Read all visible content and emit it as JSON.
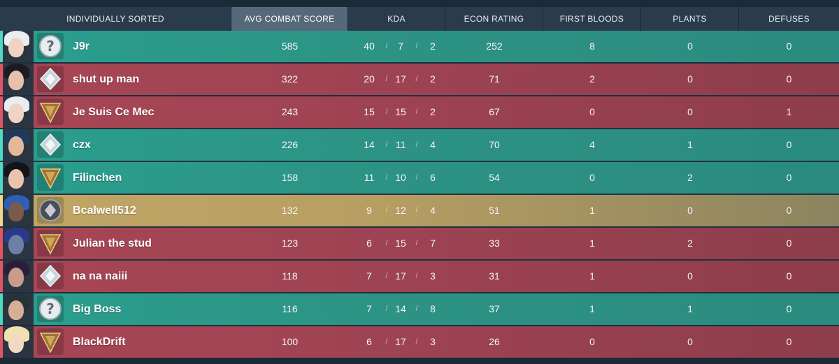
{
  "header": {
    "individually_sorted": "INDIVIDUALLY SORTED",
    "avg_combat_score": "AVG COMBAT SCORE",
    "kda": "KDA",
    "econ_rating": "ECON RATING",
    "first_bloods": "FIRST BLOODS",
    "plants": "PLANTS",
    "defuses": "DEFUSES"
  },
  "kda_separator": "/",
  "colors": {
    "ally_row": "#2a9f8f",
    "enemy_row": "#a84655",
    "self_row": "#c1a665",
    "active_header": "#55697a"
  },
  "players": [
    {
      "name": "J9r",
      "team": "ally",
      "rank_icon": "unranked-icon",
      "agent_icon": "agent-jett-icon",
      "acs": "585",
      "k": "40",
      "d": "7",
      "a": "2",
      "econ": "252",
      "fb": "8",
      "plants": "0",
      "defuses": "0"
    },
    {
      "name": "shut up man",
      "team": "enemy",
      "rank_icon": "silver-rank-icon",
      "agent_icon": "agent-reyna-icon",
      "acs": "322",
      "k": "20",
      "d": "17",
      "a": "2",
      "econ": "71",
      "fb": "2",
      "plants": "0",
      "defuses": "0"
    },
    {
      "name": "Je Suis Ce Mec",
      "team": "enemy",
      "rank_icon": "bronze-rank-icon",
      "agent_icon": "agent-jett-icon",
      "acs": "243",
      "k": "15",
      "d": "15",
      "a": "2",
      "econ": "67",
      "fb": "0",
      "plants": "0",
      "defuses": "1"
    },
    {
      "name": "czx",
      "team": "ally",
      "rank_icon": "silver-rank-icon",
      "agent_icon": "agent-neon-icon",
      "acs": "226",
      "k": "14",
      "d": "11",
      "a": "4",
      "econ": "70",
      "fb": "4",
      "plants": "1",
      "defuses": "0"
    },
    {
      "name": "Filinchen",
      "team": "ally",
      "rank_icon": "bronze-rank-icon",
      "agent_icon": "agent-sage-icon",
      "acs": "158",
      "k": "11",
      "d": "10",
      "a": "6",
      "econ": "54",
      "fb": "0",
      "plants": "2",
      "defuses": "0"
    },
    {
      "name": "Bcalwell512",
      "team": "self",
      "rank_icon": "iron-rank-icon",
      "agent_icon": "agent-astra-icon",
      "acs": "132",
      "k": "9",
      "d": "12",
      "a": "4",
      "econ": "51",
      "fb": "1",
      "plants": "0",
      "defuses": "0"
    },
    {
      "name": "Julian the stud",
      "team": "enemy",
      "rank_icon": "bronze-rank-icon",
      "agent_icon": "agent-kayo-icon",
      "acs": "123",
      "k": "6",
      "d": "15",
      "a": "7",
      "econ": "33",
      "fb": "1",
      "plants": "2",
      "defuses": "0"
    },
    {
      "name": "na na naiii",
      "team": "enemy",
      "rank_icon": "silver-rank-icon",
      "agent_icon": "agent-reyna-icon",
      "acs": "118",
      "k": "7",
      "d": "17",
      "a": "3",
      "econ": "31",
      "fb": "1",
      "plants": "0",
      "defuses": "0"
    },
    {
      "name": "Big Boss",
      "team": "ally",
      "rank_icon": "unranked-icon",
      "agent_icon": "agent-chamber-icon",
      "acs": "116",
      "k": "7",
      "d": "14",
      "a": "8",
      "econ": "37",
      "fb": "1",
      "plants": "1",
      "defuses": "0"
    },
    {
      "name": "BlackDrift",
      "team": "enemy",
      "rank_icon": "bronze-rank-icon",
      "agent_icon": "agent-killjoy-icon",
      "acs": "100",
      "k": "6",
      "d": "17",
      "a": "3",
      "econ": "26",
      "fb": "0",
      "plants": "0",
      "defuses": "0"
    }
  ]
}
